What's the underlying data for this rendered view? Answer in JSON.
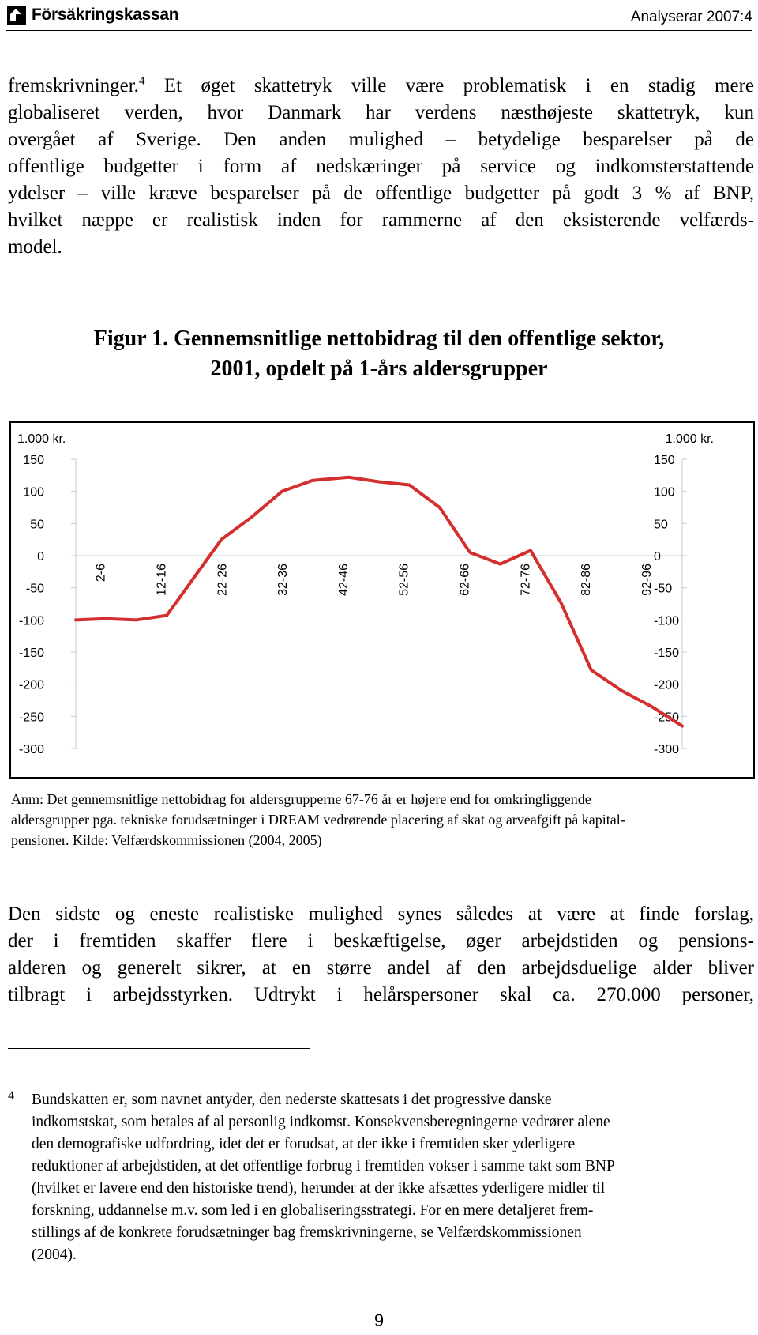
{
  "header": {
    "logo_text": "Försäkringskassan",
    "series": "Analyserar 2007:4"
  },
  "intro": {
    "lines": [
      "fremskrivninger.",
      "globaliseret verden, hvor Danmark har verdens næsthøjeste skattetryk, kun",
      "overgået af Sverige. Den anden mulighed – betydelige besparelser på de",
      "offentlige budgetter i form af nedskæringer på service og indkomsterstattende",
      "ydelser – ville kræve besparelser på de offentlige budgetter på godt 3 % af BNP,",
      "hvilket næppe er realistisk inden for rammerne af den eksisterende velfærds-",
      "model."
    ],
    "footnote_ref": "4",
    "line1_rest": " Et øget skattetryk ville være problematisk i en stadig mere"
  },
  "figure": {
    "title_line1": "Figur 1. Gennemsnitlige nettobidrag til den offentlige sektor,",
    "title_line2": "2001, opdelt på 1-års aldersgrupper",
    "note_lines": [
      "Anm: Det gennemsnitlige nettobidrag for aldersgrupperne 67-76 år er højere end for omkringliggende",
      "aldersgrupper pga. tekniske forudsætninger i DREAM vedrørende placering af skat og arveafgift på kapital-",
      "pensioner. Kilde: Velfærdskommissionen (2004, 2005)"
    ]
  },
  "chart_data": {
    "type": "line",
    "ylabel_left": "1.000 kr.",
    "ylabel_right": "1.000 kr.",
    "ylim": [
      -300,
      150
    ],
    "yticks": [
      "150",
      "100",
      "50",
      "0",
      "-50",
      "-100",
      "-150",
      "-200",
      "-250",
      "-300"
    ],
    "ytick_values": [
      150,
      100,
      50,
      0,
      -50,
      -100,
      -150,
      -200,
      -250,
      -300
    ],
    "xlim": [
      0,
      100
    ],
    "categories": [
      "2-6",
      "12-16",
      "22-26",
      "32-36",
      "42-46",
      "52-56",
      "62-66",
      "72-76",
      "82-86",
      "92-96"
    ],
    "category_centers": [
      4,
      14,
      24,
      34,
      44,
      54,
      64,
      74,
      84,
      94
    ],
    "grid": false,
    "legend": "none",
    "line_color": "#d32f2f",
    "series": [
      {
        "x": [
          0,
          5,
          10,
          15,
          24,
          29,
          34,
          39,
          45,
          50,
          55,
          60,
          65,
          70,
          75,
          80,
          85,
          90,
          95,
          100
        ],
        "values": [
          -100,
          -98,
          -100,
          -93,
          25,
          60,
          100,
          117,
          122,
          115,
          110,
          75,
          5,
          -13,
          8,
          -73,
          -178,
          -210,
          -235,
          -265
        ]
      }
    ]
  },
  "closing": {
    "lines": [
      "Den sidste og eneste realistiske mulighed synes således at være at finde forslag,",
      "der i fremtiden skaffer flere i beskæftigelse, øger arbejdstiden og pensions-",
      "alderen og generelt sikrer, at en større andel af den arbejdsduelige alder bliver",
      "tilbragt i arbejdsstyrken. Udtrykt i helårspersoner skal ca. 270.000 personer,"
    ]
  },
  "footnote": {
    "number": "4",
    "lines": [
      "Bundskatten er, som navnet antyder, den nederste skattesats i det progressive danske",
      "indkomstskat, som betales af al personlig indkomst. Konsekvensberegningerne vedrører alene",
      "den demografiske udfordring, idet det er forudsat, at der ikke i fremtiden sker yderligere",
      "reduktioner af arbejdstiden, at det offentlige forbrug i fremtiden vokser i samme takt som BNP",
      "(hvilket er lavere end den historiske trend), herunder at der ikke afsættes yderligere midler til",
      "forskning, uddannelse m.v. som led i en globaliseringsstrategi. For en mere detaljeret frem-",
      "stillings af de konkrete forudsætninger bag fremskrivningerne, se Velfærdskommissionen",
      "(2004)."
    ]
  },
  "page": {
    "number": "9"
  }
}
